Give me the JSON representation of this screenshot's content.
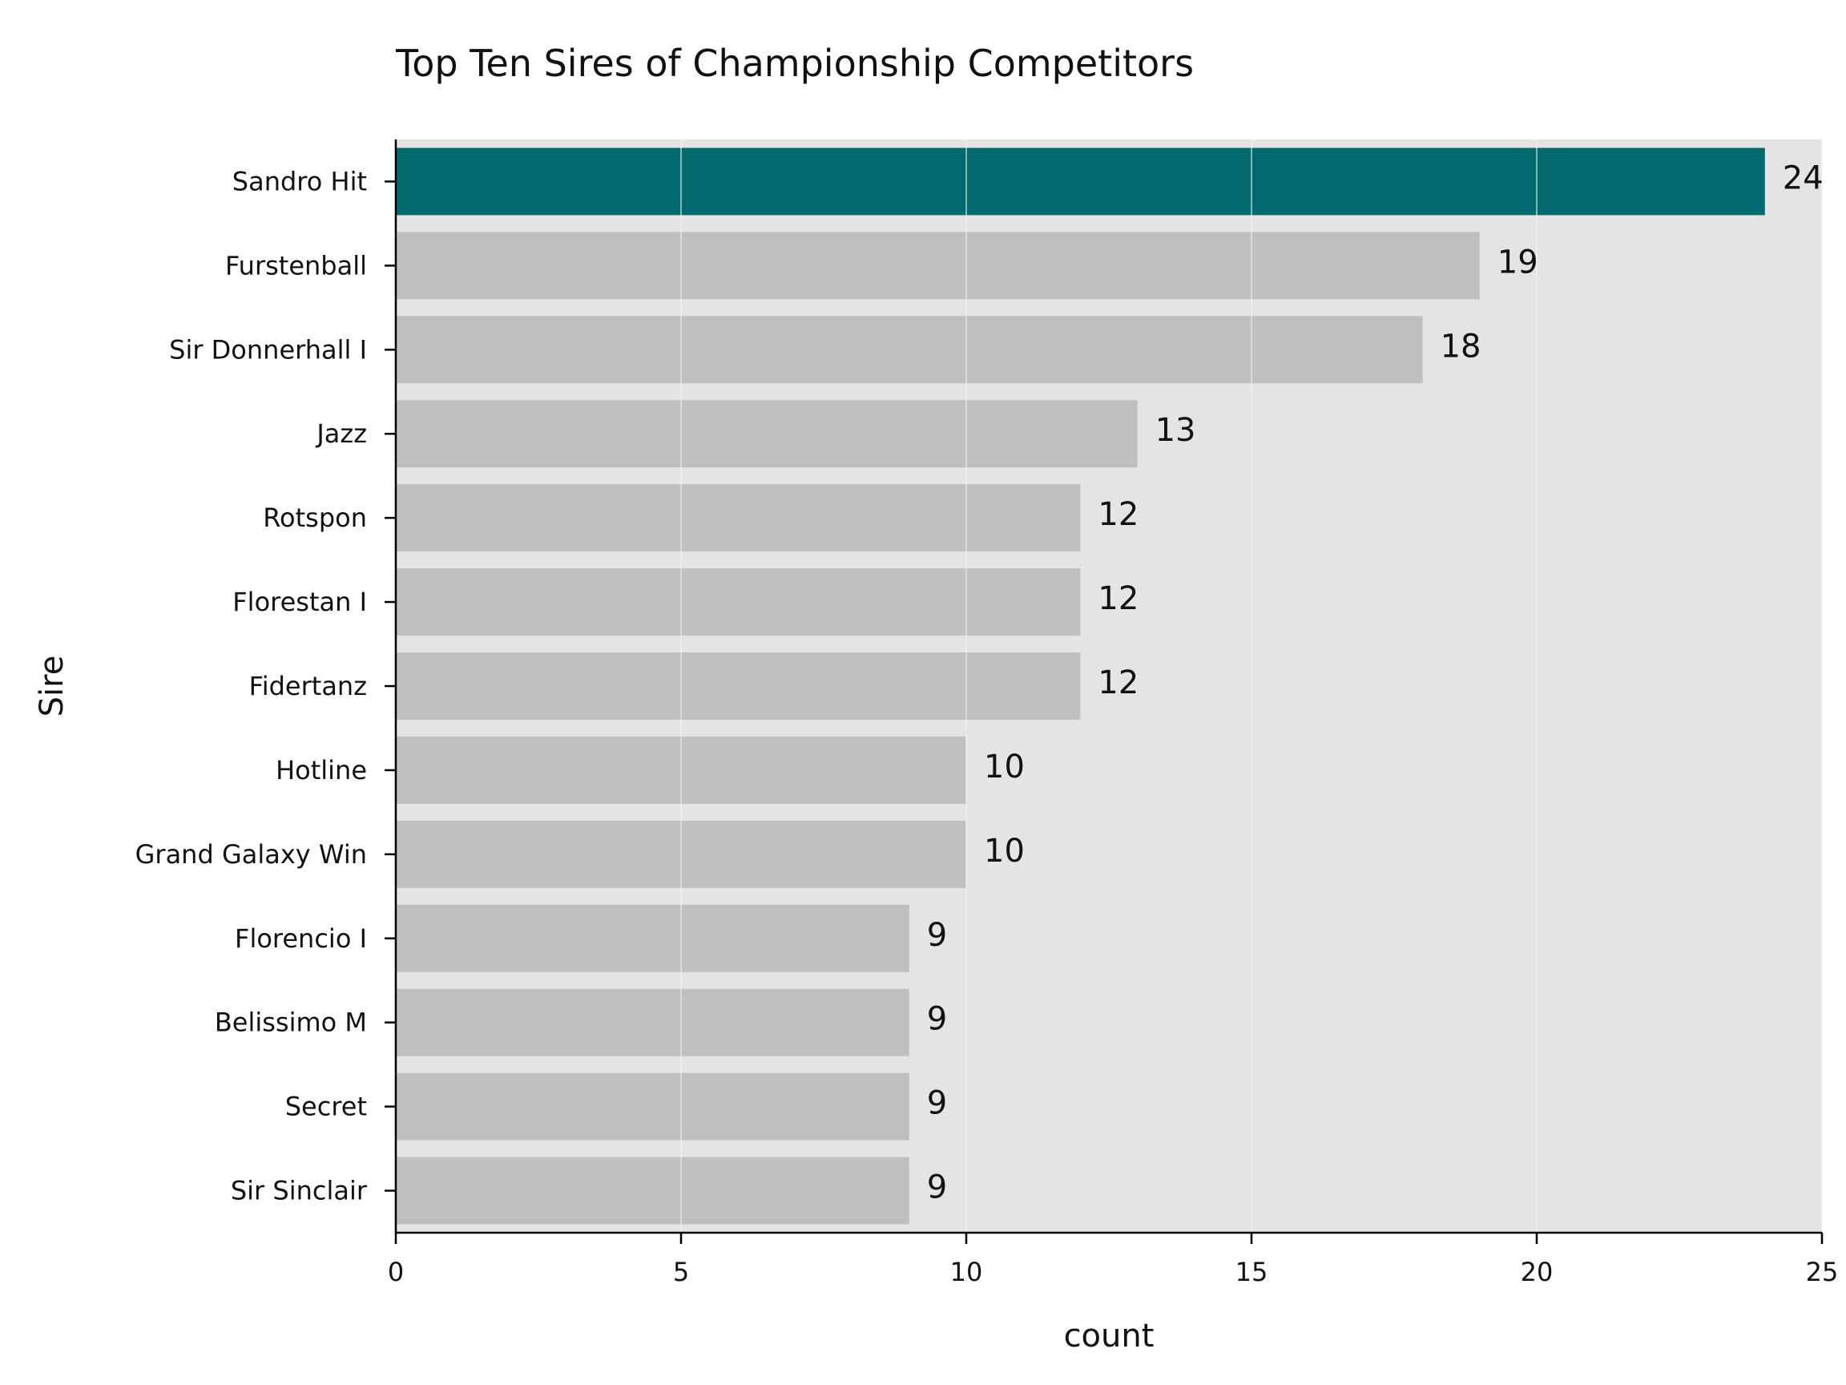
{
  "chart_data": {
    "type": "bar",
    "orientation": "horizontal",
    "title": "Top Ten Sires of Championship Competitors",
    "xlabel": "count",
    "ylabel": "Sire",
    "categories": [
      "Sandro Hit",
      "Furstenball",
      "Sir Donnerhall I",
      "Jazz",
      "Rotspon",
      "Florestan I",
      "Fidertanz",
      "Hotline",
      "Grand Galaxy Win",
      "Florencio I",
      "Belissimo M",
      "Secret",
      "Sir Sinclair"
    ],
    "values": [
      24,
      19,
      18,
      13,
      12,
      12,
      12,
      10,
      10,
      9,
      9,
      9,
      9
    ],
    "value_labels": [
      "24",
      "19",
      "18",
      "13",
      "12",
      "12",
      "12",
      "10",
      "10",
      "9",
      "9",
      "9",
      "9"
    ],
    "xlim": [
      0,
      25
    ],
    "xticks": [
      0,
      5,
      10,
      15,
      20,
      25
    ],
    "xtick_labels": [
      "0",
      "5",
      "10",
      "15",
      "20",
      "25"
    ],
    "grid": "vertical",
    "colors": {
      "highlight": "#036a70",
      "bar": "#bfbfbf",
      "plot_background": "#e5e4e3",
      "grid": "#f3f3f3",
      "axis": "#000000"
    },
    "highlight_index": 0
  }
}
